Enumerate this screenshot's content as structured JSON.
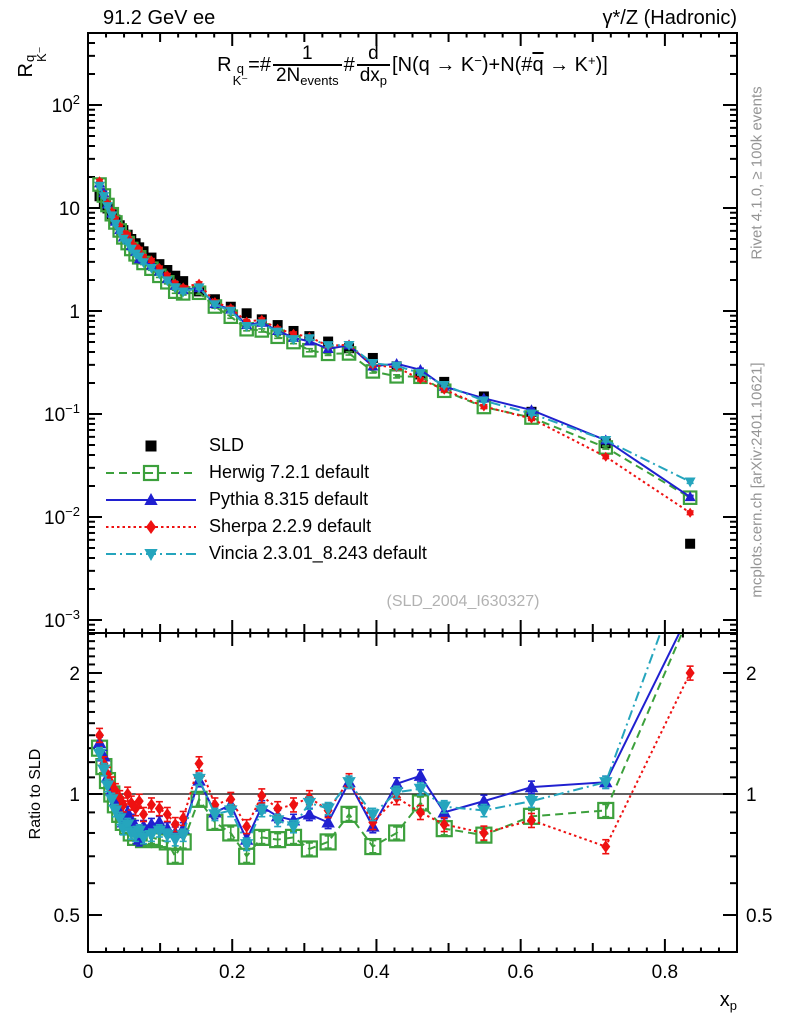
{
  "header": {
    "title_left": "91.2 GeV ee",
    "title_right": "γ*/Z (Hadronic)"
  },
  "captions": {
    "right_top": "Rivet 4.1.0, ≥ 100k events",
    "right_bottom": "mcplots.cern.ch [arXiv:2401.10621]",
    "watermark": "(SLD_2004_I630327)"
  },
  "axis_titles": {
    "main_y_base": "R",
    "main_y_sup": "q",
    "main_y_sub": "K⁻",
    "ratio_y": "Ratio to SLD",
    "x_base": "x",
    "x_sub": "p"
  },
  "formula": {
    "lhs_base": "R",
    "lhs_sup": "q",
    "lhs_sub": "K⁻",
    "eq": "=#",
    "frac1_num": "1",
    "frac1_den": "2N",
    "frac1_den_sub": "events",
    "op": "#",
    "frac2_num": "d",
    "frac2_den": "dx",
    "frac2_den_sub": "p",
    "rhs_a": "[N(q →  K",
    "rhs_a_sup": "−",
    "rhs_b": ")+N(#",
    "qbar": "q",
    "rhs_c": " →  K",
    "rhs_c_sup": "+",
    "rhs_d": ")]"
  },
  "chart_data": {
    "type": "line",
    "title": "R_K^q = 1/(2N_events) d/dx_p [N(q→K-)+N(qbar→K+)]",
    "xlabel": "x_p",
    "panels": [
      {
        "id": "main",
        "ylabel": "R^q_K-",
        "yscale": "log",
        "ylim": [
          0.00075,
          500
        ],
        "xlim": [
          0,
          0.9
        ],
        "grid": false
      },
      {
        "id": "ratio",
        "ylabel": "Ratio to SLD",
        "yscale": "log",
        "ylim": [
          0.4,
          2.51
        ],
        "xlim": [
          0,
          0.9
        ],
        "grid": false,
        "reference_line": 1
      }
    ],
    "x": [
      0.016,
      0.022,
      0.027,
      0.033,
      0.038,
      0.044,
      0.049,
      0.055,
      0.06,
      0.066,
      0.071,
      0.077,
      0.088,
      0.099,
      0.11,
      0.121,
      0.132,
      0.154,
      0.176,
      0.198,
      0.22,
      0.241,
      0.263,
      0.285,
      0.307,
      0.333,
      0.362,
      0.395,
      0.428,
      0.461,
      0.494,
      0.549,
      0.615,
      0.718,
      0.835
    ],
    "series": [
      {
        "key": "sld",
        "label": "SLD",
        "color": "#000000",
        "marker": "square",
        "line": "none",
        "err_frac": 0.03,
        "values": [
          13.0,
          11.3,
          9.9,
          8.7,
          7.7,
          6.8,
          6.1,
          5.5,
          5.0,
          4.55,
          4.15,
          3.8,
          3.3,
          2.85,
          2.5,
          2.2,
          1.95,
          1.55,
          1.3,
          1.1,
          0.95,
          0.83,
          0.73,
          0.64,
          0.57,
          0.505,
          0.435,
          0.35,
          0.29,
          0.242,
          0.205,
          0.148,
          0.105,
          0.052,
          0.0055
        ]
      },
      {
        "key": "herwig",
        "label": "Herwig 7.2.1 default",
        "color": "#3ca03c",
        "marker": "square-open",
        "line": "dashed",
        "err_frac": 0.035,
        "ratio_to_sld": [
          1.3,
          1.17,
          1.08,
          1.0,
          0.94,
          0.89,
          0.85,
          0.83,
          0.8,
          0.78,
          0.8,
          0.77,
          0.78,
          0.77,
          0.76,
          0.7,
          0.76,
          0.97,
          0.85,
          0.8,
          0.7,
          0.78,
          0.77,
          0.78,
          0.73,
          0.76,
          0.89,
          0.74,
          0.8,
          0.95,
          0.82,
          0.79,
          0.88,
          0.91,
          2.8
        ]
      },
      {
        "key": "pythia",
        "label": "Pythia 8.315 default",
        "color": "#2020d0",
        "marker": "triangle-up",
        "line": "solid",
        "err_frac": 0.035,
        "ratio_to_sld": [
          1.34,
          1.24,
          1.1,
          1.02,
          0.96,
          0.9,
          0.85,
          0.9,
          0.86,
          0.83,
          0.77,
          0.83,
          0.84,
          0.85,
          0.82,
          0.8,
          0.82,
          1.08,
          0.9,
          0.94,
          0.77,
          0.93,
          0.88,
          0.86,
          0.89,
          0.85,
          1.07,
          0.83,
          1.06,
          1.11,
          0.9,
          0.96,
          1.04,
          1.07,
          2.85
        ]
      },
      {
        "key": "sherpa",
        "label": "Sherpa 2.2.9 default",
        "color": "#ee1111",
        "marker": "diamond",
        "line": "dotted",
        "err_frac": 0.04,
        "ratio_to_sld": [
          1.4,
          1.19,
          1.12,
          1.06,
          1.02,
          0.98,
          0.94,
          1.0,
          0.95,
          0.92,
          0.96,
          0.89,
          0.94,
          0.92,
          0.89,
          0.84,
          0.87,
          1.19,
          0.94,
          0.97,
          0.83,
          0.99,
          0.92,
          0.94,
          0.98,
          0.91,
          1.08,
          0.85,
          0.98,
          0.9,
          0.84,
          0.8,
          0.86,
          0.74,
          2.0
        ]
      },
      {
        "key": "vincia",
        "label": "Vincia 2.3.01_8.243 default",
        "color": "#25a5bd",
        "marker": "triangle-down",
        "line": "dashdot",
        "err_frac": 0.035,
        "ratio_to_sld": [
          1.26,
          1.15,
          1.05,
          0.97,
          0.91,
          0.87,
          0.82,
          0.84,
          0.8,
          0.79,
          0.81,
          0.78,
          0.79,
          0.81,
          0.79,
          0.77,
          0.79,
          1.09,
          0.89,
          0.91,
          0.75,
          0.91,
          0.86,
          0.83,
          0.95,
          0.92,
          1.07,
          0.89,
          1.01,
          1.03,
          0.93,
          0.91,
          0.96,
          1.07,
          4.0
        ]
      }
    ],
    "xticks": [
      {
        "value": 0,
        "text": "0"
      },
      {
        "value": 0.2,
        "text": "0.2"
      },
      {
        "value": 0.4,
        "text": "0.4"
      },
      {
        "value": 0.6,
        "text": "0.6"
      },
      {
        "value": 0.8,
        "text": "0.8"
      }
    ],
    "main_yticks": [
      {
        "value": 100,
        "text": "10",
        "sup": "2"
      },
      {
        "value": 10,
        "text": "10",
        "sup": ""
      },
      {
        "value": 1,
        "text": "1",
        "sup": ""
      },
      {
        "value": 0.1,
        "text": "10",
        "sup": "−1"
      },
      {
        "value": 0.01,
        "text": "10",
        "sup": "−2"
      },
      {
        "value": 0.001,
        "text": "10",
        "sup": "−3"
      }
    ],
    "ratio_yticks": [
      {
        "value": 2,
        "text": "2"
      },
      {
        "value": 1,
        "text": "1"
      },
      {
        "value": 0.5,
        "text": "0.5"
      }
    ],
    "legend_position": "left-middle"
  }
}
